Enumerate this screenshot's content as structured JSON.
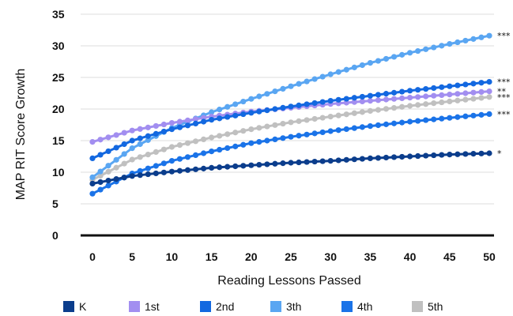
{
  "chart_data": {
    "type": "line",
    "xlabel": "Reading Lessons Passed",
    "ylabel": "MAP RIT Score Growth",
    "xlim": [
      0,
      50
    ],
    "ylim": [
      0,
      35
    ],
    "xticks": [
      "0",
      "5",
      "10",
      "15",
      "20",
      "25",
      "30",
      "35",
      "40",
      "45",
      "50"
    ],
    "yticks": [
      "0",
      "5",
      "10",
      "15",
      "20",
      "25",
      "30",
      "35"
    ],
    "grid": "horizontal",
    "legend_position": "bottom",
    "series": [
      {
        "name": "K",
        "color": "#0b3d8c",
        "points": [
          [
            0,
            8.2
          ],
          [
            5,
            9.4
          ],
          [
            10,
            10.1
          ],
          [
            15,
            10.7
          ],
          [
            20,
            11.1
          ],
          [
            25,
            11.5
          ],
          [
            30,
            11.8
          ],
          [
            35,
            12.2
          ],
          [
            40,
            12.5
          ],
          [
            45,
            12.8
          ],
          [
            50,
            13.0
          ]
        ],
        "significance": "*"
      },
      {
        "name": "1st",
        "color": "#a28ef0",
        "points": [
          [
            0,
            14.8
          ],
          [
            5,
            16.6
          ],
          [
            10,
            17.8
          ],
          [
            15,
            18.8
          ],
          [
            20,
            19.6
          ],
          [
            25,
            20.2
          ],
          [
            30,
            20.8
          ],
          [
            35,
            21.3
          ],
          [
            40,
            21.8
          ],
          [
            45,
            22.3
          ],
          [
            50,
            22.8
          ]
        ],
        "significance": "**"
      },
      {
        "name": "2nd",
        "color": "#1368e0",
        "points": [
          [
            0,
            12.2
          ],
          [
            5,
            15.0
          ],
          [
            10,
            16.8
          ],
          [
            15,
            18.3
          ],
          [
            20,
            19.4
          ],
          [
            25,
            20.4
          ],
          [
            30,
            21.3
          ],
          [
            35,
            22.1
          ],
          [
            40,
            22.9
          ],
          [
            45,
            23.6
          ],
          [
            50,
            24.3
          ]
        ],
        "significance": "***"
      },
      {
        "name": "3th",
        "color": "#5aa6f2",
        "points": [
          [
            0,
            9.2
          ],
          [
            5,
            13.8
          ],
          [
            10,
            17.0
          ],
          [
            15,
            19.5
          ],
          [
            20,
            21.6
          ],
          [
            25,
            23.6
          ],
          [
            30,
            25.5
          ],
          [
            35,
            27.3
          ],
          [
            40,
            28.9
          ],
          [
            45,
            30.3
          ],
          [
            50,
            31.6
          ]
        ],
        "significance": "***"
      },
      {
        "name": "4th",
        "color": "#1a73e8",
        "points": [
          [
            0,
            6.6
          ],
          [
            5,
            9.8
          ],
          [
            10,
            11.8
          ],
          [
            15,
            13.3
          ],
          [
            20,
            14.6
          ],
          [
            25,
            15.6
          ],
          [
            30,
            16.5
          ],
          [
            35,
            17.3
          ],
          [
            40,
            18.0
          ],
          [
            45,
            18.6
          ],
          [
            50,
            19.2
          ]
        ],
        "significance": "***"
      },
      {
        "name": "5th",
        "color": "#c0c0c0",
        "points": [
          [
            0,
            8.8
          ],
          [
            5,
            12.0
          ],
          [
            10,
            14.0
          ],
          [
            15,
            15.5
          ],
          [
            20,
            16.8
          ],
          [
            25,
            17.9
          ],
          [
            30,
            18.8
          ],
          [
            35,
            19.7
          ],
          [
            40,
            20.5
          ],
          [
            45,
            21.2
          ],
          [
            50,
            21.9
          ]
        ],
        "significance": "***"
      }
    ]
  }
}
